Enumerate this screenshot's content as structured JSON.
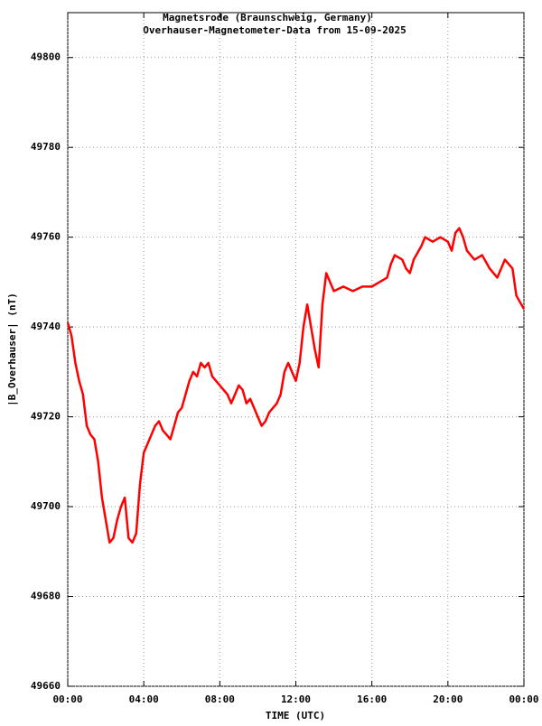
{
  "chart_data": {
    "type": "line",
    "title": "Magnetsrode (Braunschweig, Germany)",
    "subtitle": "Overhauser-Magnetometer-Data from 15-09-2025",
    "x_label": "TIME (UTC)",
    "y_label": "|B_Overhauser| (nT)",
    "xlim": [
      0,
      24
    ],
    "xticks": [
      {
        "value": 0,
        "label": "00:00"
      },
      {
        "value": 4,
        "label": "04:00"
      },
      {
        "value": 8,
        "label": "08:00"
      },
      {
        "value": 12,
        "label": "12:00"
      },
      {
        "value": 16,
        "label": "16:00"
      },
      {
        "value": 20,
        "label": "20:00"
      },
      {
        "value": 24,
        "label": "00:00"
      }
    ],
    "ylim": [
      49660,
      49810
    ],
    "yticks": [
      49660,
      49680,
      49700,
      49720,
      49740,
      49760,
      49780,
      49800
    ],
    "grid": true,
    "x": [
      0.0,
      0.2,
      0.4,
      0.6,
      0.8,
      1.0,
      1.2,
      1.4,
      1.6,
      1.8,
      2.0,
      2.2,
      2.4,
      2.6,
      2.8,
      3.0,
      3.2,
      3.4,
      3.6,
      3.8,
      4.0,
      4.2,
      4.4,
      4.6,
      4.8,
      5.0,
      5.2,
      5.4,
      5.6,
      5.8,
      6.0,
      6.2,
      6.4,
      6.6,
      6.8,
      7.0,
      7.2,
      7.4,
      7.6,
      7.8,
      8.0,
      8.2,
      8.4,
      8.6,
      8.8,
      9.0,
      9.2,
      9.4,
      9.6,
      9.8,
      10.0,
      10.2,
      10.4,
      10.6,
      10.8,
      11.0,
      11.2,
      11.4,
      11.6,
      11.8,
      12.0,
      12.2,
      12.4,
      12.6,
      12.8,
      13.0,
      13.2,
      13.4,
      13.6,
      13.8,
      14.0,
      14.5,
      15.0,
      15.5,
      16.0,
      16.4,
      16.8,
      17.0,
      17.2,
      17.6,
      17.8,
      18.0,
      18.2,
      18.6,
      18.8,
      19.2,
      19.6,
      20.0,
      20.2,
      20.4,
      20.6,
      20.8,
      21.0,
      21.4,
      21.8,
      22.2,
      22.6,
      23.0,
      23.4,
      23.6,
      24.0
    ],
    "series": [
      {
        "name": "|B_Overhauser|",
        "color": "#ff0000",
        "values": [
          49741,
          49738,
          49732,
          49728,
          49725,
          49718,
          49716,
          49715,
          49710,
          49702,
          49697,
          49692,
          49693,
          49697,
          49700,
          49702,
          49693,
          49692,
          49694,
          49705,
          49712,
          49714,
          49716,
          49718,
          49719,
          49717,
          49716,
          49715,
          49718,
          49721,
          49722,
          49725,
          49728,
          49730,
          49729,
          49732,
          49731,
          49732,
          49729,
          49728,
          49727,
          49726,
          49725,
          49723,
          49725,
          49727,
          49726,
          49723,
          49724,
          49722,
          49720,
          49718,
          49719,
          49721,
          49722,
          49723,
          49725,
          49730,
          49732,
          49730,
          49728,
          49732,
          49740,
          49745,
          49740,
          49735,
          49731,
          49745,
          49752,
          49750,
          49748,
          49749,
          49748,
          49749,
          49749,
          49750,
          49751,
          49754,
          49756,
          49755,
          49753,
          49752,
          49755,
          49758,
          49760,
          49759,
          49760,
          49759,
          49757,
          49761,
          49762,
          49760,
          49757,
          49755,
          49756,
          49753,
          49751,
          49755,
          49753,
          49747,
          49744
        ]
      }
    ]
  }
}
